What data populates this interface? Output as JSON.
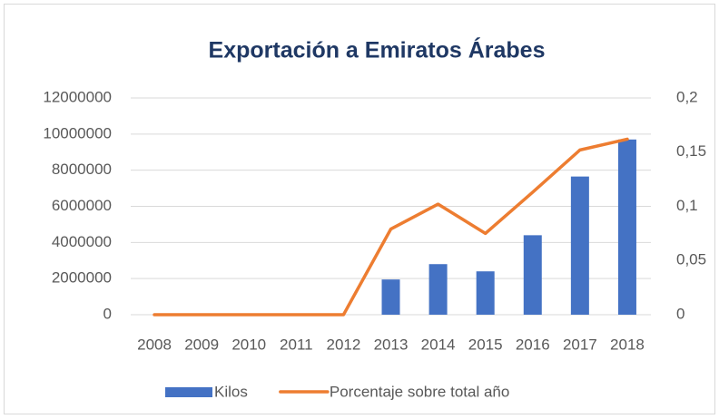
{
  "chart_data": {
    "type": "combo",
    "title": "Exportación a Emiratos Árabes",
    "categories": [
      "2008",
      "2009",
      "2010",
      "2011",
      "2012",
      "2013",
      "2014",
      "2015",
      "2016",
      "2017",
      "2018"
    ],
    "series": [
      {
        "name": "Kilos",
        "type": "bar",
        "color": "#4472c4",
        "axis": "y",
        "values": [
          0,
          0,
          0,
          0,
          0,
          1950000,
          2800000,
          2400000,
          4400000,
          7650000,
          9700000
        ]
      },
      {
        "name": "Porcentaje sobre total año",
        "type": "line",
        "color": "#ed7d31",
        "axis": "y2",
        "values": [
          0,
          0,
          0,
          0,
          0,
          0.079,
          0.102,
          0.075,
          0.113,
          0.152,
          0.162
        ]
      }
    ],
    "ylim": [
      0,
      12000000
    ],
    "yticks": [
      0,
      2000000,
      4000000,
      6000000,
      8000000,
      10000000,
      12000000
    ],
    "y2lim": [
      0,
      0.2
    ],
    "y2ticks": [
      0,
      {
        "value": 0.05,
        "label": "0,05"
      },
      {
        "value": 0.1,
        "label": "0,1"
      },
      {
        "value": 0.15,
        "label": "0,15"
      },
      {
        "value": 0.2,
        "label": "0,2"
      }
    ],
    "grid": true,
    "legend": "bottom"
  }
}
